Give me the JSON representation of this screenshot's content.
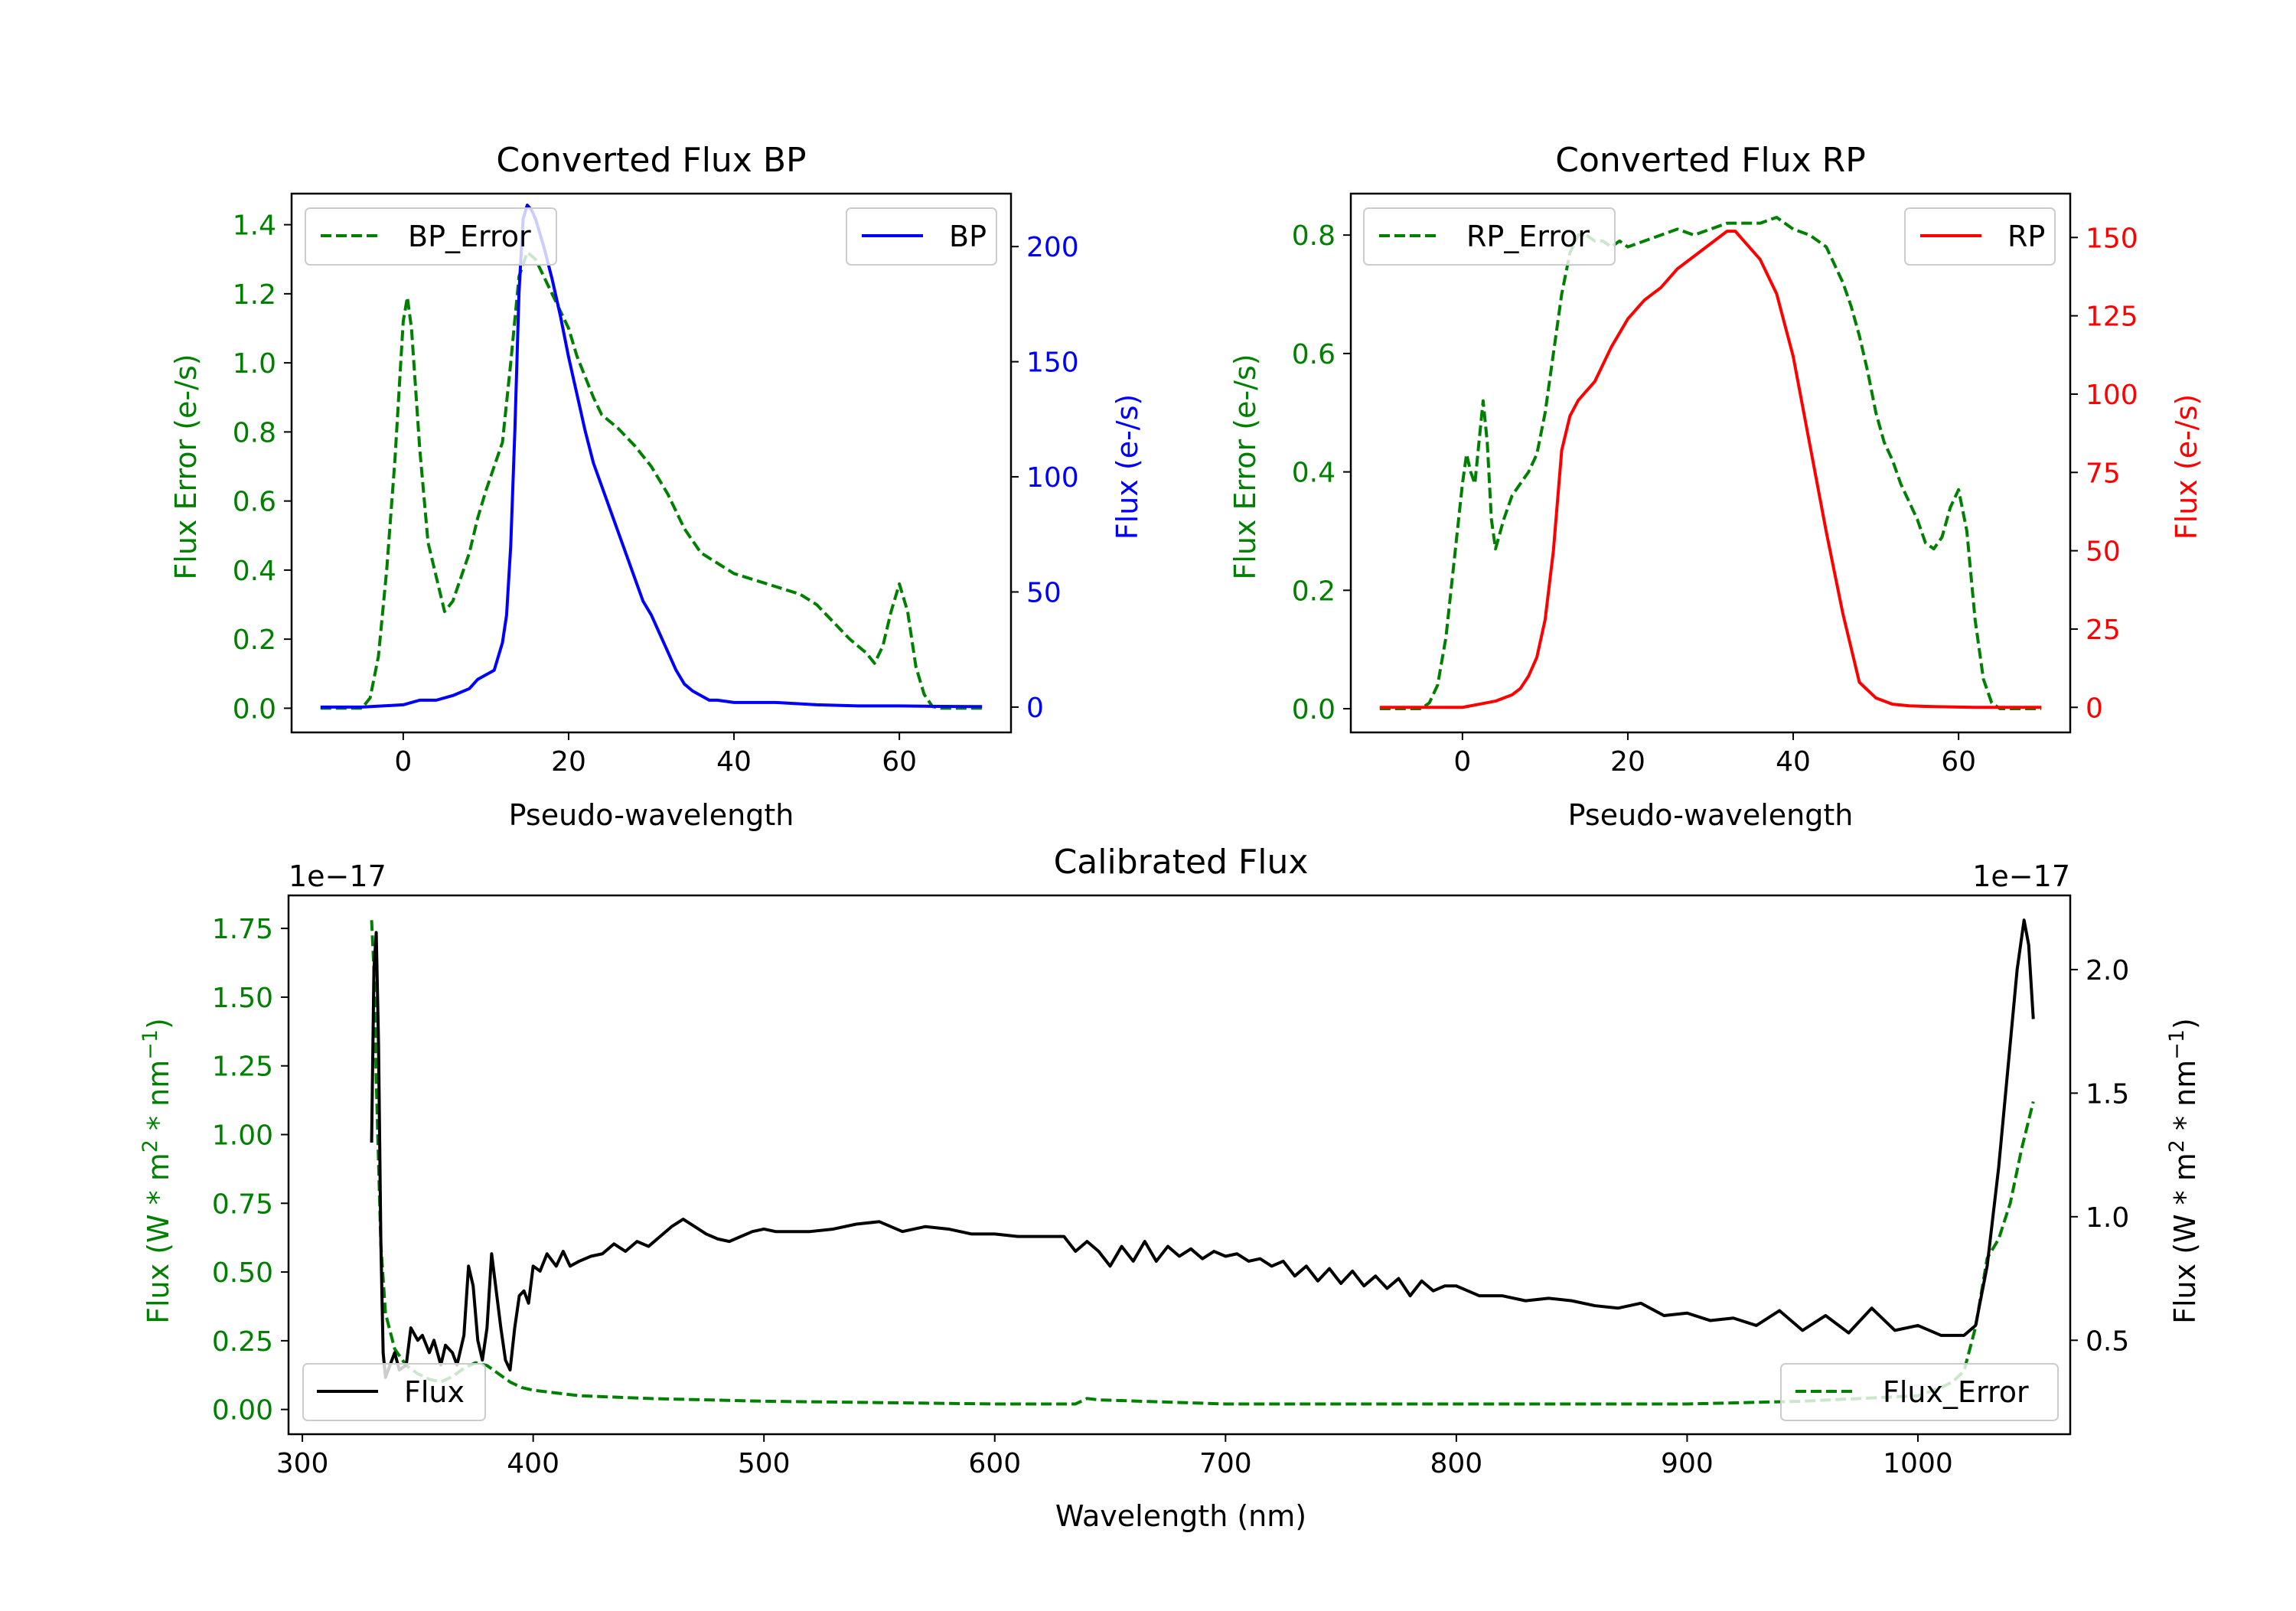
{
  "colors": {
    "error": "#008000",
    "bp": "#0000ff",
    "rp": "#ff0000",
    "flux": "#000000",
    "axis": "#000000",
    "legend_border": "#cccccc"
  },
  "chart_data": [
    {
      "id": "bp",
      "type": "line",
      "title": "Converted Flux BP",
      "xlabel": "Pseudo-wavelength",
      "ylabel_left": "Flux Error (e-/s)",
      "ylabel_right": "Flux (e-/s)",
      "xlim": [
        -13.5,
        73.5
      ],
      "ylim_left": [
        -0.07,
        1.49
      ],
      "ylim_right": [
        -11,
        223
      ],
      "xticks": [
        0,
        20,
        40,
        60
      ],
      "xtick_labels": [
        "0",
        "20",
        "40",
        "60"
      ],
      "yticks_left": [
        0.0,
        0.2,
        0.4,
        0.6,
        0.8,
        1.0,
        1.2,
        1.4
      ],
      "ytick_labels_left": [
        "0.0",
        "0.2",
        "0.4",
        "0.6",
        "0.8",
        "1.0",
        "1.2",
        "1.4"
      ],
      "yticks_right": [
        0,
        50,
        100,
        150,
        200
      ],
      "ytick_labels_right": [
        "0",
        "50",
        "100",
        "150",
        "200"
      ],
      "legend_left": "BP_Error",
      "legend_right": "BP",
      "series": [
        {
          "name": "BP_Error",
          "axis": "left",
          "style": "dashed",
          "color_key": "error",
          "x": [
            -10,
            -5,
            -4,
            -3,
            -2,
            -1,
            0,
            0.5,
            1,
            2,
            3,
            4,
            5,
            6,
            7,
            8,
            9,
            10,
            11,
            12,
            13,
            14,
            15,
            16,
            17,
            18,
            19,
            20,
            21,
            22,
            23,
            24,
            26,
            28,
            30,
            32,
            34,
            36,
            38,
            40,
            44,
            48,
            50,
            52,
            54,
            56,
            57,
            58,
            59,
            60,
            61,
            62,
            63,
            64,
            65,
            70
          ],
          "y": [
            0,
            0,
            0.03,
            0.15,
            0.4,
            0.72,
            1.12,
            1.19,
            1.1,
            0.75,
            0.48,
            0.38,
            0.28,
            0.31,
            0.38,
            0.45,
            0.55,
            0.63,
            0.7,
            0.77,
            1.0,
            1.25,
            1.32,
            1.3,
            1.25,
            1.2,
            1.15,
            1.1,
            1.02,
            0.96,
            0.9,
            0.85,
            0.81,
            0.76,
            0.7,
            0.62,
            0.52,
            0.45,
            0.42,
            0.39,
            0.36,
            0.33,
            0.3,
            0.25,
            0.2,
            0.16,
            0.13,
            0.18,
            0.28,
            0.36,
            0.28,
            0.12,
            0.04,
            0.005,
            0,
            0
          ]
        },
        {
          "name": "BP",
          "axis": "right",
          "style": "solid",
          "color_key": "bp",
          "x": [
            -10,
            -5,
            0,
            2,
            4,
            6,
            8,
            9,
            10,
            11,
            12,
            12.5,
            13,
            13.5,
            14,
            14.5,
            15,
            15.5,
            16,
            17,
            18,
            19,
            20,
            21,
            22,
            23,
            24,
            25,
            26,
            27,
            28,
            29,
            30,
            31,
            32,
            33,
            34,
            35,
            36,
            37,
            38,
            40,
            45,
            50,
            55,
            60,
            65,
            70
          ],
          "y": [
            0,
            0,
            1,
            3,
            3,
            5,
            8,
            12,
            14,
            16,
            28,
            40,
            70,
            120,
            180,
            212,
            218,
            216,
            212,
            200,
            186,
            170,
            152,
            136,
            120,
            106,
            96,
            86,
            76,
            66,
            56,
            46,
            40,
            32,
            24,
            16,
            10,
            7,
            5,
            3,
            3,
            2,
            2,
            1,
            0.5,
            0.5,
            0.3,
            0.2
          ]
        }
      ]
    },
    {
      "id": "rp",
      "type": "line",
      "title": "Converted Flux RP",
      "xlabel": "Pseudo-wavelength",
      "ylabel_left": "Flux Error (e-/s)",
      "ylabel_right": "Flux (e-/s)",
      "xlim": [
        -13.5,
        73.5
      ],
      "ylim_left": [
        -0.04,
        0.87
      ],
      "ylim_right": [
        -8,
        164
      ],
      "xticks": [
        0,
        20,
        40,
        60
      ],
      "xtick_labels": [
        "0",
        "20",
        "40",
        "60"
      ],
      "yticks_left": [
        0.0,
        0.2,
        0.4,
        0.6,
        0.8
      ],
      "ytick_labels_left": [
        "0.0",
        "0.2",
        "0.4",
        "0.6",
        "0.8"
      ],
      "yticks_right": [
        0,
        25,
        50,
        75,
        100,
        125,
        150
      ],
      "ytick_labels_right": [
        "0",
        "25",
        "50",
        "75",
        "100",
        "125",
        "150"
      ],
      "legend_left": "RP_Error",
      "legend_right": "RP",
      "series": [
        {
          "name": "RP_Error",
          "axis": "left",
          "style": "dashed",
          "color_key": "error",
          "x": [
            -10,
            -5,
            -4,
            -3,
            -2,
            -1,
            0,
            0.5,
            1,
            1.5,
            2,
            2.5,
            3,
            3.5,
            4,
            5,
            6,
            7,
            8,
            9,
            10,
            11,
            12,
            13,
            14,
            15,
            16,
            17,
            18,
            19,
            20,
            22,
            24,
            26,
            28,
            30,
            32,
            34,
            36,
            38,
            40,
            42,
            43,
            44,
            45,
            46,
            47,
            48,
            49,
            50,
            51,
            52,
            53,
            54,
            55,
            56,
            57,
            58,
            59,
            60,
            61,
            62,
            63,
            64,
            65,
            70
          ],
          "y": [
            0,
            0,
            0.01,
            0.04,
            0.12,
            0.25,
            0.38,
            0.43,
            0.4,
            0.38,
            0.45,
            0.52,
            0.45,
            0.32,
            0.27,
            0.32,
            0.36,
            0.38,
            0.4,
            0.43,
            0.5,
            0.6,
            0.7,
            0.77,
            0.8,
            0.8,
            0.79,
            0.79,
            0.78,
            0.79,
            0.78,
            0.79,
            0.8,
            0.81,
            0.8,
            0.81,
            0.82,
            0.82,
            0.82,
            0.83,
            0.81,
            0.8,
            0.79,
            0.78,
            0.75,
            0.72,
            0.68,
            0.63,
            0.57,
            0.5,
            0.45,
            0.42,
            0.38,
            0.35,
            0.32,
            0.28,
            0.27,
            0.29,
            0.34,
            0.37,
            0.3,
            0.15,
            0.05,
            0.01,
            0,
            0
          ]
        },
        {
          "name": "RP",
          "axis": "right",
          "style": "solid",
          "color_key": "rp",
          "x": [
            -10,
            -5,
            0,
            2,
            4,
            5,
            6,
            7,
            8,
            9,
            10,
            11,
            12,
            13,
            14,
            15,
            16,
            18,
            20,
            22,
            24,
            26,
            28,
            30,
            32,
            33,
            34,
            36,
            38,
            40,
            42,
            44,
            46,
            48,
            50,
            52,
            54,
            56,
            58,
            60,
            62,
            65,
            70
          ],
          "y": [
            0,
            0,
            0,
            1,
            2,
            3,
            4,
            6,
            10,
            16,
            28,
            50,
            82,
            93,
            98,
            101,
            104,
            115,
            124,
            130,
            134,
            140,
            144,
            148,
            152,
            152,
            149,
            143,
            132,
            112,
            84,
            56,
            30,
            8,
            3,
            1,
            0.5,
            0.3,
            0.2,
            0.1,
            0,
            0,
            0
          ]
        }
      ]
    },
    {
      "id": "calibrated",
      "type": "line",
      "title": "Calibrated Flux",
      "xlabel": "Wavelength (nm)",
      "ylabel_left_parts": [
        "Flux (W * m",
        "2",
        " * nm",
        "−1",
        ")"
      ],
      "ylabel_right_parts": [
        "Flux (W * m",
        "2",
        " * nm",
        "−1",
        ")"
      ],
      "offset_left": "1e−17",
      "offset_right": "1e−17",
      "xlim": [
        294,
        1066
      ],
      "ylim_left": [
        -0.09,
        1.87
      ],
      "ylim_right": [
        0.12,
        2.3
      ],
      "xticks": [
        300,
        400,
        500,
        600,
        700,
        800,
        900,
        1000
      ],
      "xtick_labels": [
        "300",
        "400",
        "500",
        "600",
        "700",
        "800",
        "900",
        "1000"
      ],
      "yticks_left": [
        0.0,
        0.25,
        0.5,
        0.75,
        1.0,
        1.25,
        1.5,
        1.75
      ],
      "ytick_labels_left": [
        "0.00",
        "0.25",
        "0.50",
        "0.75",
        "1.00",
        "1.25",
        "1.50",
        "1.75"
      ],
      "yticks_right": [
        0.5,
        1.0,
        1.5,
        2.0
      ],
      "ytick_labels_right": [
        "0.5",
        "1.0",
        "1.5",
        "2.0"
      ],
      "legend_left": "Flux",
      "legend_right": "Flux_Error",
      "series": [
        {
          "name": "Flux_Error",
          "axis": "left",
          "style": "dashed",
          "color_key": "error",
          "x": [
            330,
            331,
            332,
            334,
            336,
            340,
            345,
            350,
            355,
            360,
            365,
            370,
            375,
            380,
            385,
            390,
            395,
            400,
            410,
            420,
            450,
            500,
            550,
            600,
            635,
            640,
            645,
            700,
            750,
            800,
            850,
            900,
            950,
            1000,
            1010,
            1015,
            1020,
            1025,
            1030,
            1035,
            1040,
            1045,
            1050
          ],
          "y": [
            1.78,
            1.6,
            1.2,
            0.6,
            0.35,
            0.22,
            0.16,
            0.13,
            0.11,
            0.1,
            0.12,
            0.15,
            0.17,
            0.16,
            0.13,
            0.1,
            0.08,
            0.07,
            0.06,
            0.05,
            0.04,
            0.03,
            0.025,
            0.02,
            0.02,
            0.04,
            0.035,
            0.02,
            0.02,
            0.02,
            0.02,
            0.02,
            0.03,
            0.05,
            0.08,
            0.1,
            0.14,
            0.3,
            0.55,
            0.62,
            0.75,
            0.95,
            1.12
          ]
        },
        {
          "name": "Flux",
          "axis": "right",
          "style": "solid",
          "color_key": "flux",
          "x": [
            330,
            331,
            332,
            333,
            334,
            335,
            336,
            338,
            340,
            342,
            345,
            347,
            350,
            352,
            355,
            357,
            360,
            362,
            365,
            367,
            370,
            372,
            374,
            376,
            378,
            380,
            382,
            384,
            386,
            388,
            390,
            392,
            394,
            396,
            398,
            400,
            403,
            406,
            410,
            413,
            416,
            420,
            425,
            430,
            435,
            440,
            445,
            450,
            455,
            460,
            465,
            470,
            475,
            480,
            485,
            490,
            495,
            500,
            505,
            510,
            515,
            520,
            530,
            540,
            550,
            560,
            570,
            580,
            590,
            600,
            610,
            620,
            630,
            635,
            640,
            645,
            650,
            655,
            660,
            665,
            670,
            675,
            680,
            685,
            690,
            695,
            700,
            705,
            710,
            715,
            720,
            725,
            730,
            735,
            740,
            745,
            750,
            755,
            760,
            765,
            770,
            775,
            780,
            785,
            790,
            795,
            800,
            805,
            810,
            820,
            830,
            840,
            850,
            860,
            870,
            880,
            890,
            900,
            910,
            920,
            930,
            940,
            950,
            960,
            970,
            980,
            990,
            1000,
            1010,
            1020,
            1025,
            1030,
            1035,
            1040,
            1043,
            1046,
            1048,
            1050
          ],
          "y": [
            1.3,
            2.0,
            2.15,
            1.7,
            0.9,
            0.45,
            0.35,
            0.4,
            0.45,
            0.38,
            0.4,
            0.55,
            0.5,
            0.52,
            0.45,
            0.5,
            0.4,
            0.48,
            0.45,
            0.4,
            0.52,
            0.8,
            0.72,
            0.5,
            0.42,
            0.55,
            0.85,
            0.7,
            0.55,
            0.42,
            0.38,
            0.55,
            0.68,
            0.7,
            0.65,
            0.8,
            0.78,
            0.85,
            0.8,
            0.86,
            0.8,
            0.82,
            0.84,
            0.85,
            0.89,
            0.86,
            0.9,
            0.88,
            0.92,
            0.96,
            0.99,
            0.96,
            0.93,
            0.91,
            0.9,
            0.92,
            0.94,
            0.95,
            0.94,
            0.94,
            0.94,
            0.94,
            0.95,
            0.97,
            0.98,
            0.94,
            0.96,
            0.95,
            0.93,
            0.93,
            0.92,
            0.92,
            0.92,
            0.86,
            0.9,
            0.86,
            0.8,
            0.88,
            0.82,
            0.9,
            0.82,
            0.88,
            0.84,
            0.87,
            0.83,
            0.86,
            0.84,
            0.85,
            0.82,
            0.83,
            0.8,
            0.82,
            0.76,
            0.8,
            0.74,
            0.79,
            0.73,
            0.78,
            0.72,
            0.76,
            0.71,
            0.75,
            0.68,
            0.74,
            0.7,
            0.72,
            0.72,
            0.7,
            0.68,
            0.68,
            0.66,
            0.67,
            0.66,
            0.64,
            0.63,
            0.65,
            0.6,
            0.61,
            0.58,
            0.59,
            0.56,
            0.62,
            0.54,
            0.6,
            0.53,
            0.63,
            0.54,
            0.56,
            0.52,
            0.52,
            0.56,
            0.8,
            1.2,
            1.7,
            2.0,
            2.2,
            2.1,
            1.8
          ]
        }
      ]
    }
  ]
}
